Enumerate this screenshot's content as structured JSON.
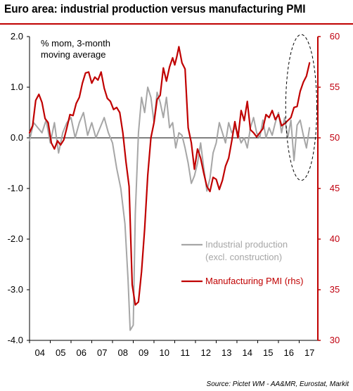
{
  "title": "Euro area: industrial production versus manufacturing PMI",
  "source": "Source: Pictet WM - AA&MR, Eurostat, Markit",
  "colors": {
    "ip": "#a6a6a6",
    "pmi": "#c00000",
    "axis_right": "#c00000",
    "title_rule": "#c00000"
  },
  "chart_data": {
    "type": "line",
    "annotation": "% mom, 3-month\nmoving average",
    "x_range": [
      2004.0,
      2017.9
    ],
    "x_tick_labels": [
      "04",
      "05",
      "06",
      "07",
      "08",
      "09",
      "10",
      "11",
      "12",
      "13",
      "14",
      "15",
      "16",
      "17"
    ],
    "y_left": {
      "range": [
        -4.0,
        2.0
      ],
      "ticks": [
        -4.0,
        -3.0,
        -2.0,
        -1.0,
        0.0,
        1.0,
        2.0
      ],
      "tick_labels": [
        "-4.0",
        "-3.0",
        "-2.0",
        "-1.0",
        "0.0",
        "1.0",
        "2.0"
      ]
    },
    "y_right": {
      "range": [
        30,
        60
      ],
      "ticks": [
        30,
        35,
        40,
        45,
        50,
        55,
        60
      ],
      "tick_labels": [
        "30",
        "35",
        "40",
        "45",
        "50",
        "55",
        "60"
      ]
    },
    "zero_line": true,
    "highlight_ellipse": {
      "x_center": 2017.1,
      "y_center_right": 53,
      "x_radius": 0.75,
      "y_radius_right": 7.2
    },
    "series": [
      {
        "name": "Industrial production\n(excl. construction)",
        "axis": "left",
        "x": [
          2004.0,
          2004.2,
          2004.4,
          2004.6,
          2004.8,
          2005.0,
          2005.2,
          2005.4,
          2005.6,
          2005.8,
          2006.0,
          2006.2,
          2006.4,
          2006.6,
          2006.8,
          2007.0,
          2007.2,
          2007.4,
          2007.6,
          2007.8,
          2008.0,
          2008.2,
          2008.4,
          2008.6,
          2008.75,
          2008.85,
          2009.0,
          2009.1,
          2009.25,
          2009.4,
          2009.55,
          2009.7,
          2009.85,
          2010.0,
          2010.15,
          2010.3,
          2010.45,
          2010.6,
          2010.75,
          2010.9,
          2011.05,
          2011.2,
          2011.35,
          2011.5,
          2011.65,
          2011.8,
          2011.95,
          2012.1,
          2012.25,
          2012.4,
          2012.55,
          2012.7,
          2012.85,
          2013.0,
          2013.15,
          2013.3,
          2013.45,
          2013.6,
          2013.75,
          2013.9,
          2014.05,
          2014.2,
          2014.35,
          2014.5,
          2014.65,
          2014.8,
          2014.95,
          2015.1,
          2015.25,
          2015.4,
          2015.55,
          2015.7,
          2015.85,
          2016.0,
          2016.15,
          2016.3,
          2016.45,
          2016.6,
          2016.75,
          2016.9,
          2017.05,
          2017.2,
          2017.35,
          2017.5
        ],
        "y": [
          -0.05,
          0.3,
          0.2,
          0.1,
          0.35,
          -0.1,
          0.3,
          -0.3,
          0.1,
          0.3,
          0.4,
          0.0,
          0.3,
          0.5,
          0.05,
          0.3,
          0.0,
          0.2,
          0.4,
          0.1,
          -0.1,
          -0.6,
          -1.0,
          -1.7,
          -2.8,
          -3.8,
          -3.7,
          -1.5,
          0.1,
          0.8,
          0.5,
          1.0,
          0.8,
          0.3,
          0.9,
          0.7,
          0.4,
          0.8,
          0.2,
          0.3,
          -0.2,
          0.1,
          0.05,
          -0.2,
          -0.5,
          -0.9,
          -0.75,
          -0.5,
          -0.1,
          -0.6,
          -1.05,
          -0.8,
          -0.3,
          -0.1,
          0.3,
          0.1,
          -0.1,
          0.3,
          0.1,
          0.2,
          0.1,
          -0.1,
          0.0,
          -0.2,
          0.2,
          0.4,
          0.1,
          0.0,
          0.35,
          0.0,
          0.2,
          0.05,
          0.3,
          0.5,
          0.1,
          0.4,
          0.0,
          0.35,
          -0.45,
          0.25,
          0.35,
          0.05,
          -0.2,
          0.2
        ]
      },
      {
        "name": "Manufacturing PMI (rhs)",
        "axis": "right",
        "x": [
          2004.0,
          2004.15,
          2004.3,
          2004.45,
          2004.6,
          2004.75,
          2004.9,
          2005.05,
          2005.2,
          2005.35,
          2005.5,
          2005.65,
          2005.8,
          2005.95,
          2006.1,
          2006.25,
          2006.4,
          2006.55,
          2006.7,
          2006.85,
          2007.0,
          2007.15,
          2007.3,
          2007.45,
          2007.6,
          2007.75,
          2007.9,
          2008.05,
          2008.2,
          2008.35,
          2008.5,
          2008.65,
          2008.8,
          2008.95,
          2009.1,
          2009.25,
          2009.4,
          2009.55,
          2009.7,
          2009.85,
          2010.0,
          2010.15,
          2010.3,
          2010.45,
          2010.6,
          2010.75,
          2010.9,
          2011.0,
          2011.1,
          2011.2,
          2011.35,
          2011.5,
          2011.65,
          2011.8,
          2011.95,
          2012.1,
          2012.25,
          2012.4,
          2012.55,
          2012.7,
          2012.85,
          2013.0,
          2013.15,
          2013.3,
          2013.45,
          2013.6,
          2013.75,
          2013.9,
          2014.05,
          2014.2,
          2014.35,
          2014.5,
          2014.65,
          2014.8,
          2014.95,
          2015.1,
          2015.25,
          2015.4,
          2015.55,
          2015.7,
          2015.85,
          2016.0,
          2016.15,
          2016.3,
          2016.45,
          2016.6,
          2016.75,
          2016.9,
          2017.05,
          2017.2,
          2017.35,
          2017.5
        ],
        "y": [
          50.5,
          51.2,
          53.7,
          54.3,
          53.5,
          51.9,
          51.5,
          49.5,
          48.9,
          49.7,
          49.3,
          49.8,
          51.0,
          52.3,
          52.2,
          53.4,
          54.0,
          55.4,
          56.4,
          56.5,
          55.4,
          56.0,
          55.7,
          56.5,
          54.9,
          53.9,
          53.6,
          52.8,
          53.0,
          52.5,
          50.5,
          47.6,
          45.2,
          35.5,
          33.5,
          33.8,
          36.8,
          41.0,
          46.3,
          50.0,
          51.5,
          53.8,
          54.2,
          56.9,
          55.6,
          57.0,
          57.9,
          57.2,
          58.0,
          59.0,
          57.4,
          56.8,
          51.0,
          49.5,
          46.9,
          48.9,
          48.0,
          46.5,
          45.2,
          44.7,
          46.1,
          45.9,
          44.9,
          45.8,
          47.2,
          48.0,
          49.7,
          51.6,
          50.0,
          52.7,
          51.7,
          53.6,
          50.8,
          50.5,
          50.1,
          50.5,
          50.9,
          52.3,
          52.0,
          52.7,
          51.8,
          52.3,
          51.2,
          51.4,
          51.7,
          52.0,
          53.0,
          53.1,
          54.6,
          55.5,
          56.1,
          57.4
        ]
      }
    ]
  }
}
